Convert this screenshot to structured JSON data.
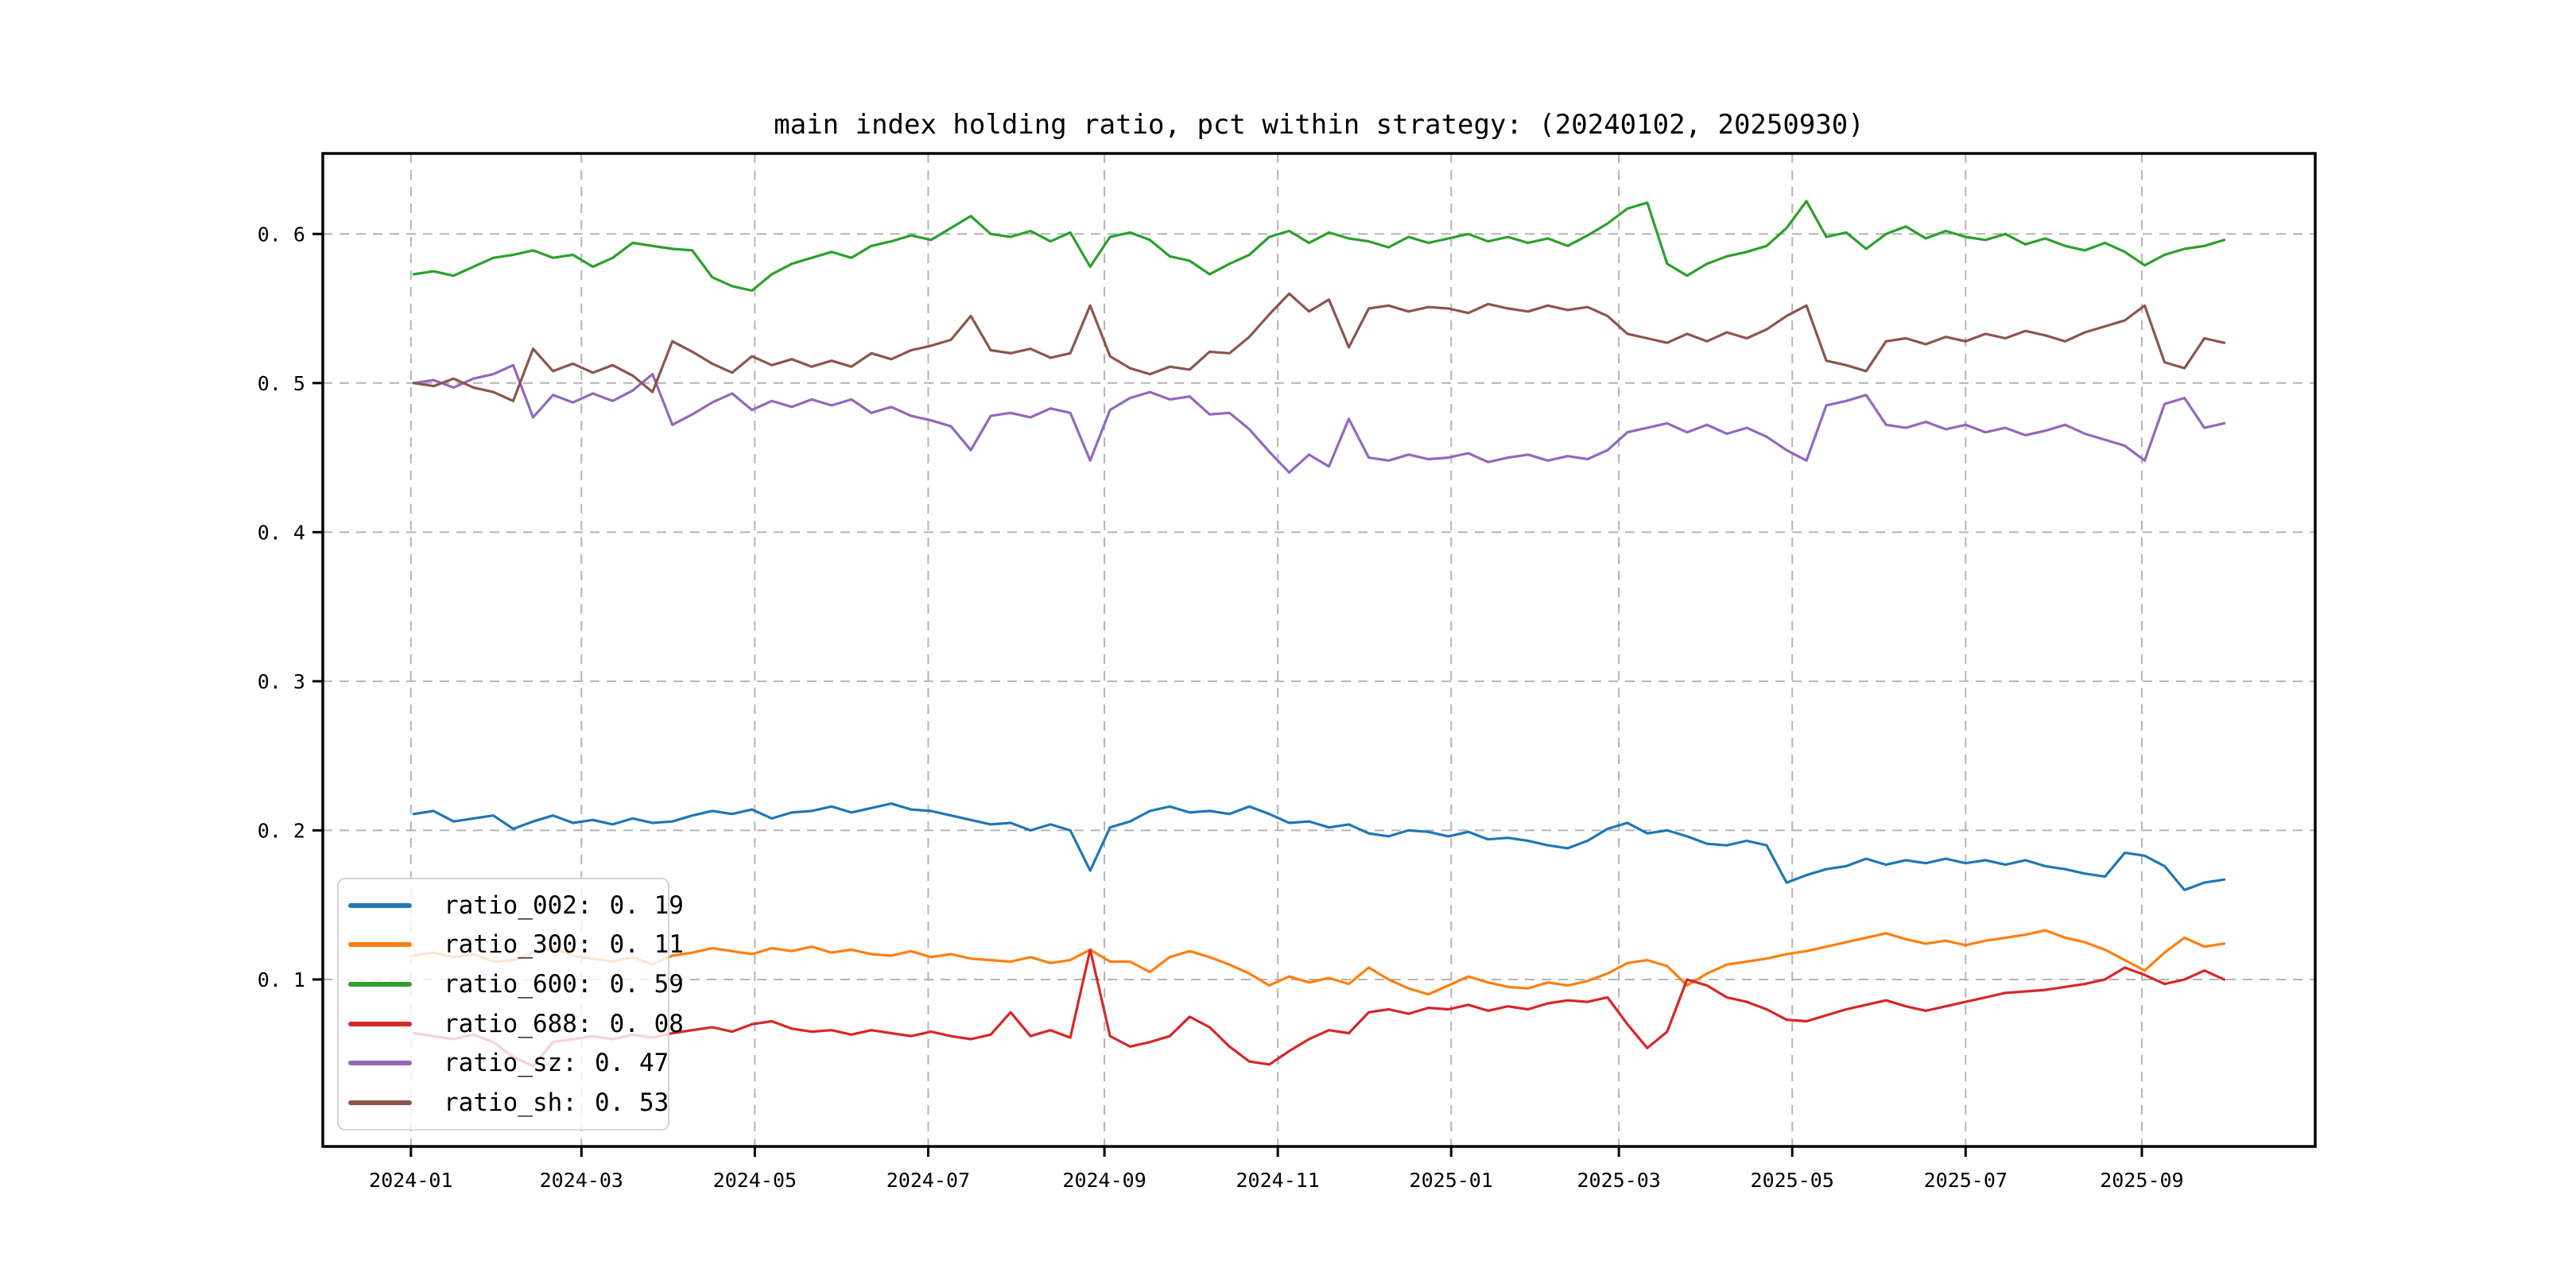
{
  "figure": {
    "background": "#ffffff"
  },
  "chart_data": {
    "type": "line",
    "title": "main index holding ratio, pct within strategy: (20240102, 20250930)",
    "xlabel": "",
    "ylabel": "",
    "grid": {
      "show": true,
      "style": "dashed",
      "color": "#b4b4b4"
    },
    "legend": {
      "position": "lower left"
    },
    "x_axis": {
      "unit": "date",
      "start_date": "2024-01-02",
      "end_date": "2025-09-30",
      "range_days": [
        -32,
        669
      ],
      "tick_labels": [
        "2024-01",
        "2024-03",
        "2024-05",
        "2024-07",
        "2024-09",
        "2024-11",
        "2025-01",
        "2025-03",
        "2025-05",
        "2025-07",
        "2025-09"
      ],
      "tick_days": [
        -1,
        59,
        120,
        181,
        243,
        304,
        365,
        424,
        485,
        546,
        608
      ]
    },
    "y_axis": {
      "range": [
        -0.012,
        0.654
      ],
      "tick_values": [
        0.1,
        0.2,
        0.3,
        0.4,
        0.5,
        0.6
      ],
      "tick_labels": [
        "0. 1",
        "0. 2",
        "0. 3",
        "0. 4",
        "0. 5",
        "0. 6"
      ]
    },
    "sample_step_days": 7,
    "series": [
      {
        "name": "ratio_002",
        "color": "#1f77b4",
        "label": "ratio_002:",
        "value_display": "0. 19",
        "mean": 0.19,
        "values": [
          0.211,
          0.213,
          0.206,
          0.208,
          0.21,
          0.201,
          0.206,
          0.21,
          0.205,
          0.207,
          0.204,
          0.208,
          0.205,
          0.206,
          0.21,
          0.213,
          0.211,
          0.214,
          0.208,
          0.212,
          0.213,
          0.216,
          0.212,
          0.215,
          0.218,
          0.214,
          0.213,
          0.21,
          0.207,
          0.204,
          0.205,
          0.2,
          0.204,
          0.2,
          0.173,
          0.202,
          0.206,
          0.213,
          0.216,
          0.212,
          0.213,
          0.211,
          0.216,
          0.211,
          0.205,
          0.206,
          0.202,
          0.204,
          0.198,
          0.196,
          0.2,
          0.199,
          0.196,
          0.199,
          0.194,
          0.195,
          0.193,
          0.19,
          0.188,
          0.193,
          0.201,
          0.205,
          0.198,
          0.2,
          0.196,
          0.191,
          0.19,
          0.193,
          0.19,
          0.165,
          0.17,
          0.174,
          0.176,
          0.181,
          0.177,
          0.18,
          0.178,
          0.181,
          0.178,
          0.18,
          0.177,
          0.18,
          0.176,
          0.174,
          0.171,
          0.169,
          0.185,
          0.183,
          0.176,
          0.16,
          0.165,
          0.167
        ]
      },
      {
        "name": "ratio_300",
        "color": "#ff7f0e",
        "label": "ratio_300:",
        "value_display": "0. 11",
        "mean": 0.11,
        "values": [
          0.116,
          0.118,
          0.115,
          0.117,
          0.112,
          0.113,
          0.118,
          0.121,
          0.116,
          0.114,
          0.112,
          0.115,
          0.11,
          0.116,
          0.118,
          0.121,
          0.119,
          0.117,
          0.121,
          0.119,
          0.122,
          0.118,
          0.12,
          0.117,
          0.116,
          0.119,
          0.115,
          0.117,
          0.114,
          0.113,
          0.112,
          0.115,
          0.111,
          0.113,
          0.12,
          0.112,
          0.112,
          0.105,
          0.115,
          0.119,
          0.115,
          0.11,
          0.104,
          0.096,
          0.102,
          0.098,
          0.101,
          0.097,
          0.108,
          0.1,
          0.094,
          0.09,
          0.096,
          0.102,
          0.098,
          0.095,
          0.094,
          0.098,
          0.096,
          0.099,
          0.104,
          0.111,
          0.113,
          0.109,
          0.096,
          0.104,
          0.11,
          0.112,
          0.114,
          0.117,
          0.119,
          0.122,
          0.125,
          0.128,
          0.131,
          0.127,
          0.124,
          0.126,
          0.123,
          0.126,
          0.128,
          0.13,
          0.133,
          0.128,
          0.125,
          0.12,
          0.113,
          0.106,
          0.118,
          0.128,
          0.122,
          0.124
        ]
      },
      {
        "name": "ratio_600",
        "color": "#2ca02c",
        "label": "ratio_600:",
        "value_display": "0. 59",
        "mean": 0.59,
        "values": [
          0.573,
          0.575,
          0.572,
          0.578,
          0.584,
          0.586,
          0.589,
          0.584,
          0.586,
          0.578,
          0.584,
          0.594,
          0.592,
          0.59,
          0.589,
          0.571,
          0.565,
          0.562,
          0.573,
          0.58,
          0.584,
          0.588,
          0.584,
          0.592,
          0.595,
          0.599,
          0.596,
          0.604,
          0.612,
          0.6,
          0.598,
          0.602,
          0.595,
          0.601,
          0.578,
          0.598,
          0.601,
          0.596,
          0.585,
          0.582,
          0.573,
          0.58,
          0.586,
          0.598,
          0.602,
          0.594,
          0.601,
          0.597,
          0.595,
          0.591,
          0.598,
          0.594,
          0.597,
          0.6,
          0.595,
          0.598,
          0.594,
          0.597,
          0.592,
          0.599,
          0.607,
          0.617,
          0.621,
          0.58,
          0.572,
          0.58,
          0.585,
          0.588,
          0.592,
          0.604,
          0.622,
          0.598,
          0.601,
          0.59,
          0.6,
          0.605,
          0.597,
          0.602,
          0.598,
          0.596,
          0.6,
          0.593,
          0.597,
          0.592,
          0.589,
          0.594,
          0.588,
          0.579,
          0.586,
          0.59,
          0.592,
          0.596
        ]
      },
      {
        "name": "ratio_688",
        "color": "#d62728",
        "label": "ratio_688:",
        "value_display": "0. 08",
        "mean": 0.08,
        "values": [
          0.064,
          0.062,
          0.06,
          0.063,
          0.058,
          0.048,
          0.042,
          0.058,
          0.06,
          0.062,
          0.06,
          0.063,
          0.061,
          0.064,
          0.066,
          0.068,
          0.065,
          0.07,
          0.072,
          0.067,
          0.065,
          0.066,
          0.063,
          0.066,
          0.064,
          0.062,
          0.065,
          0.062,
          0.06,
          0.063,
          0.078,
          0.062,
          0.066,
          0.061,
          0.12,
          0.062,
          0.055,
          0.058,
          0.062,
          0.075,
          0.068,
          0.055,
          0.045,
          0.043,
          0.052,
          0.06,
          0.066,
          0.064,
          0.078,
          0.08,
          0.077,
          0.081,
          0.08,
          0.083,
          0.079,
          0.082,
          0.08,
          0.084,
          0.086,
          0.085,
          0.088,
          0.07,
          0.054,
          0.065,
          0.1,
          0.096,
          0.088,
          0.085,
          0.08,
          0.073,
          0.072,
          0.076,
          0.08,
          0.083,
          0.086,
          0.082,
          0.079,
          0.082,
          0.085,
          0.088,
          0.091,
          0.092,
          0.093,
          0.095,
          0.097,
          0.1,
          0.108,
          0.103,
          0.097,
          0.1,
          0.106,
          0.1
        ]
      },
      {
        "name": "ratio_sz",
        "color": "#9467bd",
        "label": "ratio_sz:",
        "value_display": "0. 47",
        "mean": 0.47,
        "values": [
          0.5,
          0.502,
          0.497,
          0.503,
          0.506,
          0.512,
          0.477,
          0.492,
          0.487,
          0.493,
          0.488,
          0.495,
          0.506,
          0.472,
          0.479,
          0.487,
          0.493,
          0.482,
          0.488,
          0.484,
          0.489,
          0.485,
          0.489,
          0.48,
          0.484,
          0.478,
          0.475,
          0.471,
          0.455,
          0.478,
          0.48,
          0.477,
          0.483,
          0.48,
          0.448,
          0.482,
          0.49,
          0.494,
          0.489,
          0.491,
          0.479,
          0.48,
          0.469,
          0.454,
          0.44,
          0.452,
          0.444,
          0.476,
          0.45,
          0.448,
          0.452,
          0.449,
          0.45,
          0.453,
          0.447,
          0.45,
          0.452,
          0.448,
          0.451,
          0.449,
          0.455,
          0.467,
          0.47,
          0.473,
          0.467,
          0.472,
          0.466,
          0.47,
          0.464,
          0.455,
          0.448,
          0.485,
          0.488,
          0.492,
          0.472,
          0.47,
          0.474,
          0.469,
          0.472,
          0.467,
          0.47,
          0.465,
          0.468,
          0.472,
          0.466,
          0.462,
          0.458,
          0.448,
          0.486,
          0.49,
          0.47,
          0.473
        ]
      },
      {
        "name": "ratio_sh",
        "color": "#8c564b",
        "label": "ratio_sh:",
        "value_display": "0. 53",
        "mean": 0.53,
        "values": [
          0.5,
          0.498,
          0.503,
          0.497,
          0.494,
          0.488,
          0.523,
          0.508,
          0.513,
          0.507,
          0.512,
          0.505,
          0.494,
          0.528,
          0.521,
          0.513,
          0.507,
          0.518,
          0.512,
          0.516,
          0.511,
          0.515,
          0.511,
          0.52,
          0.516,
          0.522,
          0.525,
          0.529,
          0.545,
          0.522,
          0.52,
          0.523,
          0.517,
          0.52,
          0.552,
          0.518,
          0.51,
          0.506,
          0.511,
          0.509,
          0.521,
          0.52,
          0.531,
          0.546,
          0.56,
          0.548,
          0.556,
          0.524,
          0.55,
          0.552,
          0.548,
          0.551,
          0.55,
          0.547,
          0.553,
          0.55,
          0.548,
          0.552,
          0.549,
          0.551,
          0.545,
          0.533,
          0.53,
          0.527,
          0.533,
          0.528,
          0.534,
          0.53,
          0.536,
          0.545,
          0.552,
          0.515,
          0.512,
          0.508,
          0.528,
          0.53,
          0.526,
          0.531,
          0.528,
          0.533,
          0.53,
          0.535,
          0.532,
          0.528,
          0.534,
          0.538,
          0.542,
          0.552,
          0.514,
          0.51,
          0.53,
          0.527
        ]
      }
    ]
  }
}
